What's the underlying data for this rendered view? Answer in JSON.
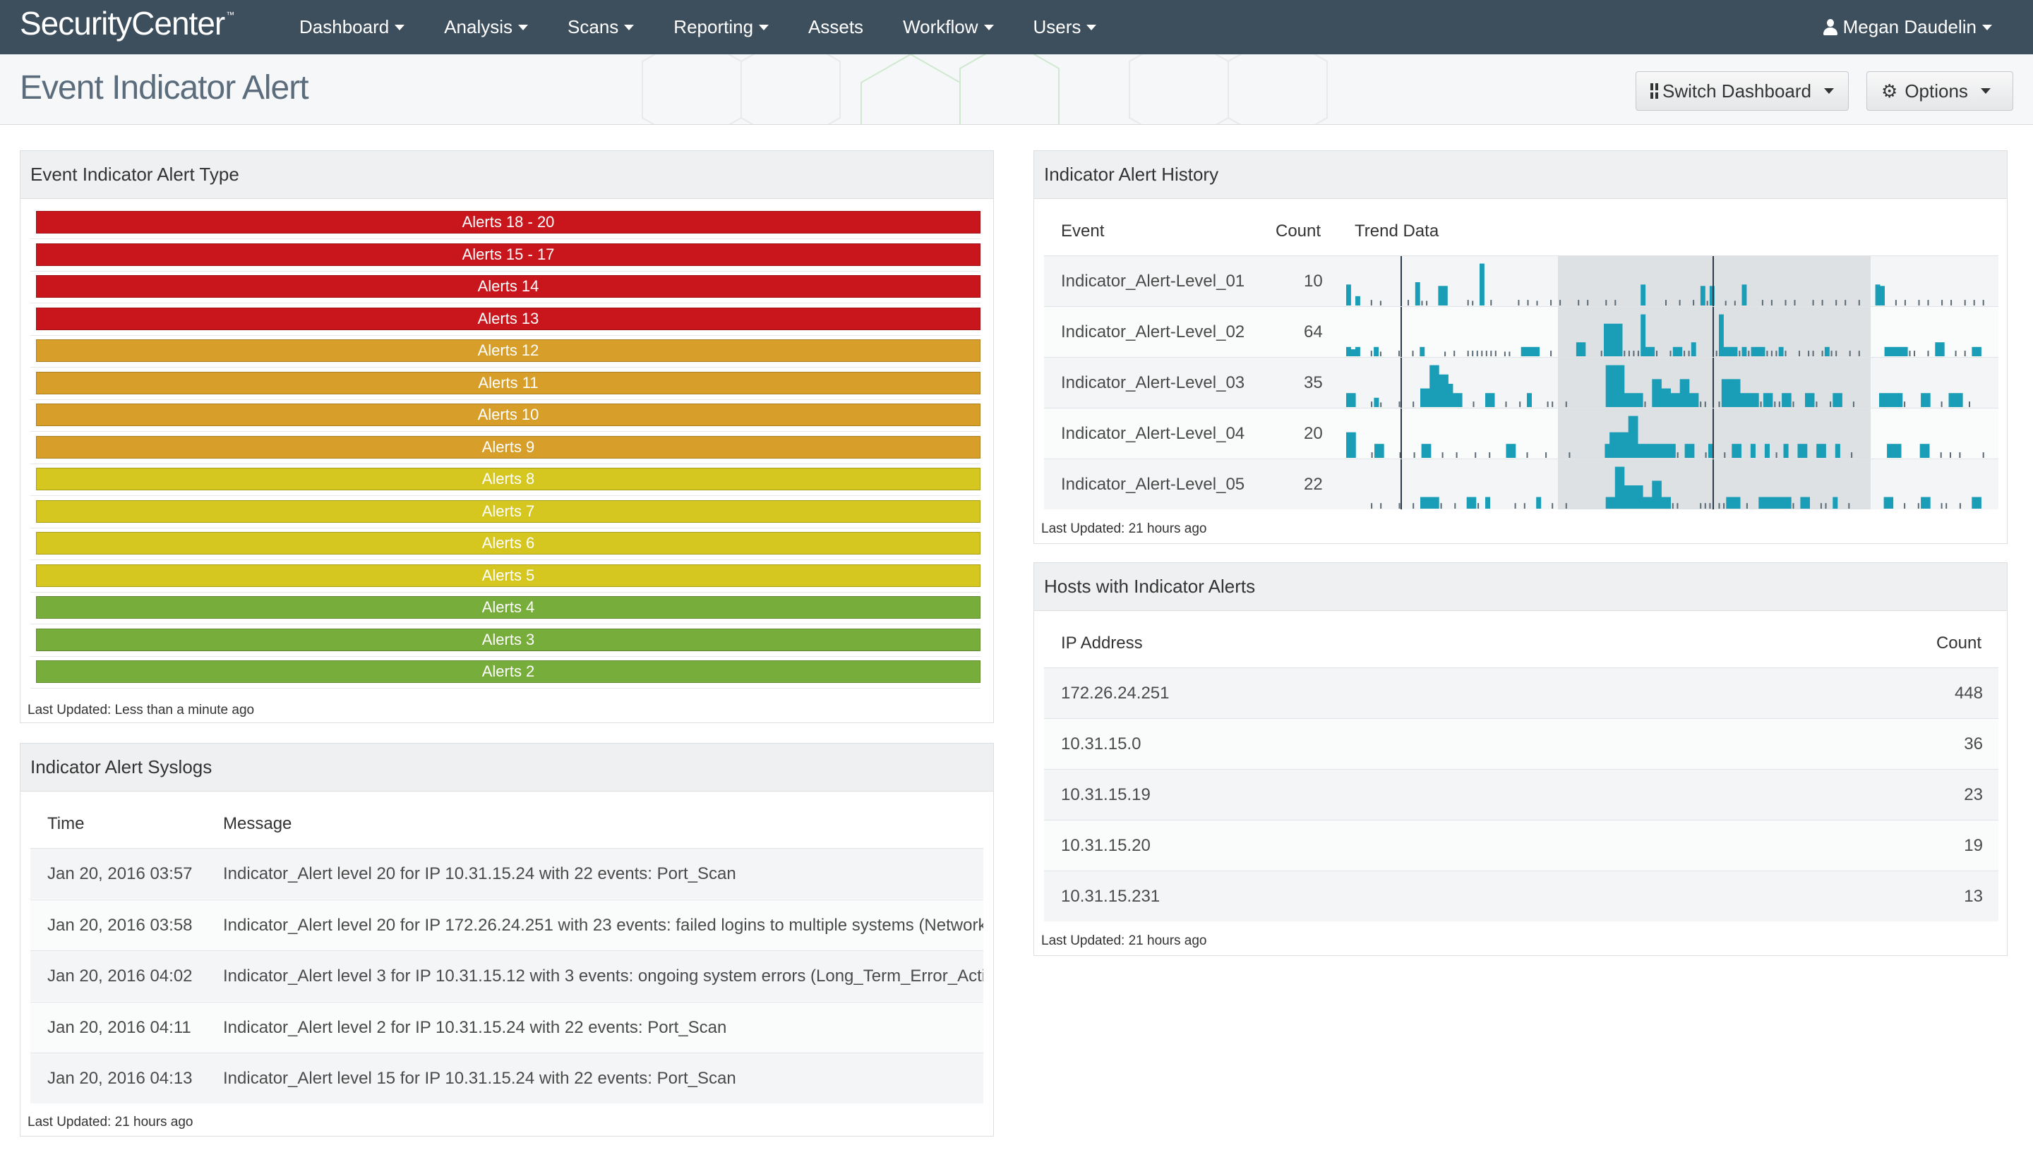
{
  "app": {
    "brand": "SecurityCenter",
    "brand_mark": "™"
  },
  "nav": [
    {
      "label": "Dashboard",
      "dropdown": true
    },
    {
      "label": "Analysis",
      "dropdown": true
    },
    {
      "label": "Scans",
      "dropdown": true
    },
    {
      "label": "Reporting",
      "dropdown": true
    },
    {
      "label": "Assets",
      "dropdown": false
    },
    {
      "label": "Workflow",
      "dropdown": true
    },
    {
      "label": "Users",
      "dropdown": true
    }
  ],
  "user": {
    "name": "Megan Daudelin"
  },
  "page": {
    "title": "Event Indicator Alert",
    "switch_dashboard_label": "Switch Dashboard",
    "options_label": "Options"
  },
  "colors": {
    "navbar": "#3d4e5d",
    "red": "#c8161c",
    "orange": "#d79f2a",
    "yellow": "#d5c620",
    "green": "#77ad3b",
    "spark": "#1a9db7"
  },
  "alert_type": {
    "title": "Event Indicator Alert Type",
    "bars": [
      {
        "label": "Alerts 18 - 20",
        "level": "red"
      },
      {
        "label": "Alerts 15 - 17",
        "level": "red"
      },
      {
        "label": "Alerts 14",
        "level": "red"
      },
      {
        "label": "Alerts 13",
        "level": "red"
      },
      {
        "label": "Alerts 12",
        "level": "orange"
      },
      {
        "label": "Alerts 11",
        "level": "orange"
      },
      {
        "label": "Alerts 10",
        "level": "orange"
      },
      {
        "label": "Alerts 9",
        "level": "orange"
      },
      {
        "label": "Alerts 8",
        "level": "yellow"
      },
      {
        "label": "Alerts 7",
        "level": "yellow"
      },
      {
        "label": "Alerts 6",
        "level": "yellow"
      },
      {
        "label": "Alerts 5",
        "level": "yellow"
      },
      {
        "label": "Alerts 4",
        "level": "green"
      },
      {
        "label": "Alerts 3",
        "level": "green"
      },
      {
        "label": "Alerts 2",
        "level": "green"
      }
    ],
    "updated": "Last Updated: Less than a minute ago"
  },
  "syslogs": {
    "title": "Indicator Alert Syslogs",
    "columns": {
      "time": "Time",
      "message": "Message"
    },
    "rows": [
      {
        "time": "Jan 20, 2016 03:57",
        "message": "Indicator_Alert level 20 for IP 10.31.15.24 with 22 events: Port_Scan"
      },
      {
        "time": "Jan 20, 2016 03:58",
        "message": "Indicator_Alert level 20 for IP 172.26.24.251 with 23 events: failed logins to multiple systems (Network_L"
      },
      {
        "time": "Jan 20, 2016 04:02",
        "message": "Indicator_Alert level 3 for IP 10.31.15.12 with 3 events: ongoing system errors (Long_Term_Error_Activit"
      },
      {
        "time": "Jan 20, 2016 04:11",
        "message": "Indicator_Alert level 2 for IP 10.31.15.24 with 22 events: Port_Scan"
      },
      {
        "time": "Jan 20, 2016 04:13",
        "message": "Indicator_Alert level 15 for IP 10.31.15.24 with 22 events: Port_Scan"
      }
    ],
    "updated": "Last Updated: 21 hours ago"
  },
  "history": {
    "title": "Indicator Alert History",
    "columns": {
      "event": "Event",
      "count": "Count",
      "trend": "Trend Data"
    },
    "rows": [
      {
        "event": "Indicator_Alert-Level_01",
        "count": "10",
        "trend": [
          0.45,
          0,
          0.2,
          0,
          0,
          0.12,
          0,
          0.1,
          0,
          0,
          0,
          0,
          0,
          0.12,
          0,
          0.5,
          0.1,
          0.1,
          0,
          0,
          0.42,
          0.42,
          0,
          0,
          0,
          0,
          0.12,
          0.1,
          0,
          0.9,
          0,
          0.12,
          0,
          0,
          0,
          0,
          0,
          0.12,
          0,
          0.12,
          0,
          0.1,
          0,
          0,
          0.12,
          0,
          0.12,
          0,
          0,
          0,
          0.12,
          0,
          0.12,
          0,
          0,
          0,
          0.12,
          0,
          0.12,
          0,
          0,
          0,
          0,
          0,
          0.45,
          0,
          0,
          0,
          0,
          0.12,
          0,
          0,
          0.12,
          0,
          0,
          0.12,
          0,
          0.42,
          0.1,
          0.42,
          0,
          0,
          0.1,
          0,
          0.1,
          0,
          0.45,
          0,
          0,
          0,
          0.12,
          0,
          0.12,
          0,
          0,
          0.12,
          0,
          0.12,
          0,
          0,
          0,
          0.12,
          0,
          0.12,
          0,
          0,
          0.12,
          0,
          0.12,
          0,
          0,
          0.12,
          0,
          0,
          0,
          0.45,
          0.42,
          0,
          0,
          0.12,
          0,
          0.12,
          0,
          0,
          0.12,
          0,
          0.12,
          0,
          0,
          0.12,
          0,
          0.12,
          0,
          0,
          0.12,
          0,
          0.12,
          0,
          0.12
        ]
      },
      {
        "event": "Indicator_Alert-Level_02",
        "count": "64",
        "trend": [
          0.2,
          0.15,
          0.2,
          0,
          0,
          0.12,
          0.2,
          0.1,
          0,
          0,
          0,
          0.12,
          0,
          0,
          0.12,
          0,
          0.2,
          0,
          0,
          0,
          0,
          0.1,
          0,
          0.12,
          0,
          0,
          0.12,
          0.12,
          0.12,
          0.12,
          0.12,
          0.12,
          0.12,
          0,
          0.1,
          0.1,
          0,
          0,
          0.2,
          0.2,
          0.2,
          0.2,
          0,
          0,
          0.12,
          0,
          0,
          0,
          0,
          0,
          0.3,
          0.3,
          0,
          0,
          0,
          0.12,
          0.7,
          0.7,
          0.7,
          0.7,
          0.12,
          0.12,
          0.12,
          0.12,
          0.9,
          0.2,
          0.2,
          0.12,
          0,
          0,
          0.12,
          0.2,
          0.2,
          0.12,
          0.12,
          0.3,
          0,
          0,
          0,
          0,
          0.12,
          0.9,
          0.2,
          0.2,
          0.2,
          0.12,
          0.2,
          0.12,
          0.2,
          0.2,
          0.2,
          0.12,
          0.12,
          0.12,
          0.2,
          0.12,
          0,
          0,
          0.12,
          0,
          0.12,
          0.12,
          0,
          0.12,
          0.2,
          0.12,
          0.12,
          0,
          0,
          0.12,
          0,
          0.12,
          0,
          0,
          0,
          0,
          0,
          0.2,
          0.2,
          0.2,
          0.2,
          0.2,
          0.12,
          0.12,
          0,
          0,
          0.12,
          0,
          0.3,
          0.3,
          0,
          0,
          0.12,
          0,
          0.12,
          0,
          0.2,
          0.2,
          0
        ]
      },
      {
        "event": "Indicator_Alert-Level_03",
        "count": "35",
        "trend": [
          0.3,
          0.3,
          0,
          0,
          0,
          0.12,
          0.2,
          0.1,
          0,
          0,
          0,
          0.12,
          0,
          0,
          0.12,
          0,
          0.4,
          0.4,
          0.9,
          0.9,
          0.7,
          0.7,
          0.5,
          0.3,
          0.3,
          0,
          0,
          0.12,
          0,
          0,
          0.3,
          0.3,
          0,
          0,
          0.12,
          0,
          0,
          0.12,
          0,
          0.3,
          0,
          0,
          0,
          0.12,
          0.12,
          0,
          0,
          0.12,
          0,
          0,
          0,
          0,
          0,
          0,
          0,
          0,
          0.9,
          0.9,
          0.9,
          0.9,
          0.3,
          0.3,
          0.3,
          0.3,
          0.12,
          0,
          0.6,
          0.6,
          0.4,
          0.4,
          0.3,
          0.3,
          0.6,
          0.6,
          0.3,
          0.3,
          0.12,
          0.12,
          0,
          0,
          0.12,
          0.6,
          0.6,
          0.6,
          0.6,
          0.3,
          0.3,
          0.3,
          0.3,
          0.12,
          0.3,
          0.3,
          0.12,
          0.12,
          0.3,
          0.3,
          0.12,
          0,
          0,
          0.3,
          0.3,
          0.12,
          0,
          0,
          0.12,
          0.3,
          0.3,
          0,
          0,
          0.12,
          0,
          0,
          0,
          0,
          0,
          0.3,
          0.3,
          0.3,
          0.3,
          0.3,
          0.12,
          0,
          0,
          0,
          0.3,
          0.3,
          0,
          0,
          0.12,
          0,
          0.3,
          0.3,
          0.3,
          0,
          0.12,
          0,
          0,
          0
        ]
      },
      {
        "event": "Indicator_Alert-Level_04",
        "count": "20",
        "trend": [
          0.55,
          0.55,
          0,
          0,
          0,
          0.12,
          0.3,
          0.3,
          0,
          0,
          0,
          0.12,
          0,
          0,
          0.12,
          0,
          0.3,
          0.3,
          0,
          0,
          0.12,
          0,
          0,
          0.12,
          0,
          0,
          0,
          0.12,
          0,
          0,
          0.12,
          0,
          0,
          0,
          0.3,
          0.3,
          0,
          0,
          0.12,
          0,
          0,
          0,
          0.12,
          0,
          0,
          0,
          0,
          0.12,
          0,
          0,
          0,
          0,
          0,
          0,
          0,
          0.3,
          0.55,
          0.55,
          0.55,
          0.55,
          0.9,
          0.9,
          0.3,
          0.3,
          0.3,
          0.3,
          0.3,
          0.3,
          0.3,
          0.3,
          0.12,
          0,
          0.3,
          0.3,
          0,
          0,
          0.12,
          0.3,
          0,
          0,
          0.12,
          0,
          0.3,
          0.3,
          0,
          0,
          0.3,
          0,
          0,
          0.3,
          0,
          0.12,
          0,
          0.3,
          0,
          0,
          0.3,
          0.3,
          0,
          0,
          0.3,
          0.3,
          0,
          0,
          0.3,
          0,
          0,
          0.12,
          0,
          0,
          0,
          0,
          0,
          0,
          0,
          0.3,
          0.3,
          0.3,
          0,
          0,
          0,
          0,
          0.3,
          0.3,
          0,
          0,
          0.12,
          0,
          0.12,
          0,
          0.12,
          0,
          0,
          0,
          0,
          0.12
        ]
      },
      {
        "event": "Indicator_Alert-Level_05",
        "count": "22",
        "trend": [
          0,
          0,
          0,
          0,
          0,
          0.12,
          0,
          0.12,
          0,
          0,
          0,
          0.12,
          0,
          0,
          0.12,
          0,
          0.25,
          0.25,
          0.25,
          0.25,
          0.12,
          0,
          0,
          0.12,
          0,
          0,
          0.25,
          0.25,
          0.12,
          0,
          0.25,
          0,
          0,
          0,
          0,
          0,
          0.12,
          0,
          0.12,
          0,
          0,
          0.25,
          0,
          0,
          0.12,
          0,
          0,
          0.12,
          0,
          0,
          0,
          0,
          0,
          0,
          0,
          0,
          0.25,
          0.25,
          0.9,
          0.9,
          0.5,
          0.5,
          0.5,
          0.5,
          0.25,
          0.25,
          0.6,
          0.6,
          0.25,
          0.25,
          0.12,
          0.12,
          0,
          0,
          0,
          0,
          0.12,
          0.12,
          0.12,
          0,
          0.12,
          0.12,
          0.25,
          0.25,
          0.25,
          0,
          0.12,
          0,
          0,
          0.25,
          0.25,
          0.25,
          0.25,
          0.25,
          0.25,
          0.25,
          0.12,
          0,
          0.25,
          0.25,
          0,
          0,
          0.12,
          0.12,
          0,
          0.25,
          0,
          0,
          0.12,
          0,
          0,
          0,
          0,
          0,
          0,
          0,
          0.25,
          0.25,
          0,
          0,
          0.12,
          0,
          0,
          0.12,
          0.25,
          0.25,
          0,
          0,
          0.12,
          0.12,
          0,
          0,
          0.12,
          0,
          0,
          0.25,
          0.25,
          0
        ]
      }
    ],
    "updated": "Last Updated: 21 hours ago"
  },
  "hosts": {
    "title": "Hosts with Indicator Alerts",
    "columns": {
      "ip": "IP Address",
      "count": "Count"
    },
    "rows": [
      {
        "ip": "172.26.24.251",
        "count": "448"
      },
      {
        "ip": "10.31.15.0",
        "count": "36"
      },
      {
        "ip": "10.31.15.19",
        "count": "23"
      },
      {
        "ip": "10.31.15.20",
        "count": "19"
      },
      {
        "ip": "10.31.15.231",
        "count": "13"
      }
    ],
    "updated": "Last Updated: 21 hours ago"
  }
}
